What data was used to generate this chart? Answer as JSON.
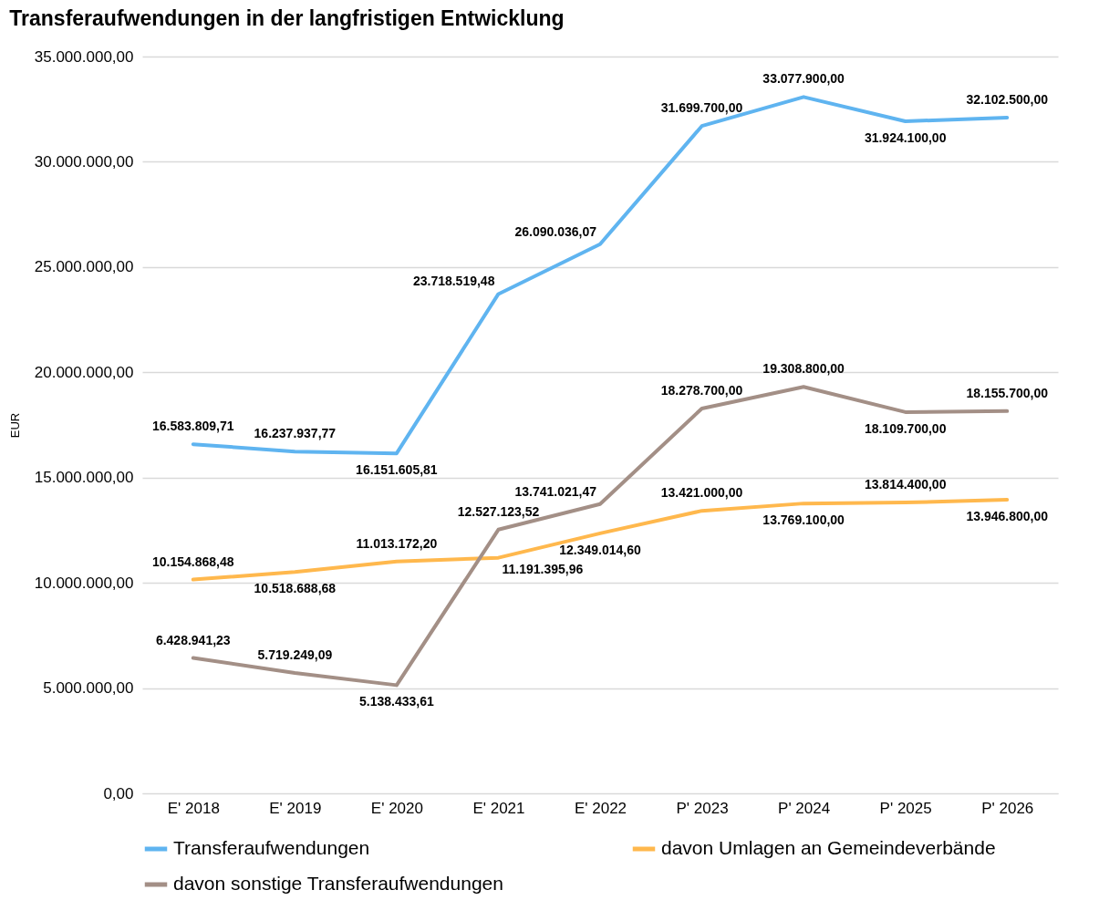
{
  "chart_data": {
    "type": "line",
    "title": "Transferaufwendungen in der langfristigen Entwicklung",
    "ylabel": "EUR",
    "categories": [
      "E' 2018",
      "E' 2019",
      "E' 2020",
      "E' 2021",
      "E' 2022",
      "P' 2023",
      "P' 2024",
      "P' 2025",
      "P' 2026"
    ],
    "series": [
      {
        "name": "Transferaufwendungen",
        "color": "#5fb4f0",
        "values": [
          16583809.71,
          16237937.77,
          16151605.81,
          23718519.48,
          26090036.07,
          31699700.0,
          33077900.0,
          31924100.0,
          32102500.0
        ],
        "value_labels": [
          "16.583.809,71",
          "16.237.937,77",
          "16.151.605,81",
          "23.718.519,48",
          "26.090.036,07",
          "31.699.700,00",
          "33.077.900,00",
          "31.924.100,00",
          "32.102.500,00"
        ]
      },
      {
        "name": "davon Umlagen an Gemeindeverbände",
        "color": "#ffb84d",
        "values": [
          10154868.48,
          10518688.68,
          11013172.2,
          11191395.96,
          12349014.6,
          13421000.0,
          13769100.0,
          13814400.0,
          13946800.0
        ],
        "value_labels": [
          "10.154.868,48",
          "10.518.688,68",
          "11.013.172,20",
          "11.191.395,96",
          "12.349.014,60",
          "13.421.000,00",
          "13.769.100,00",
          "13.814.400,00",
          "13.946.800,00"
        ]
      },
      {
        "name": "davon sonstige Transferaufwendungen",
        "color": "#a38f86",
        "values": [
          6428941.23,
          5719249.09,
          5138433.61,
          12527123.52,
          13741021.47,
          18278700.0,
          19308800.0,
          18109700.0,
          18155700.0
        ],
        "value_labels": [
          "6.428.941,23",
          "5.719.249,09",
          "5.138.433,61",
          "12.527.123,52",
          "13.741.021,47",
          "18.278.700,00",
          "19.308.800,00",
          "18.109.700,00",
          "18.155.700,00"
        ]
      }
    ],
    "ylim": [
      0,
      35000000
    ],
    "yticks": [
      {
        "value": 0,
        "label": "0,00"
      },
      {
        "value": 5000000,
        "label": "5.000.000,00"
      },
      {
        "value": 10000000,
        "label": "10.000.000,00"
      },
      {
        "value": 15000000,
        "label": "15.000.000,00"
      },
      {
        "value": 20000000,
        "label": "20.000.000,00"
      },
      {
        "value": 25000000,
        "label": "25.000.000,00"
      },
      {
        "value": 30000000,
        "label": "30.000.000,00"
      },
      {
        "value": 35000000,
        "label": "35.000.000,00"
      }
    ],
    "grid": "y",
    "legend": "bottom",
    "marker": "none",
    "line_style": "solid"
  }
}
